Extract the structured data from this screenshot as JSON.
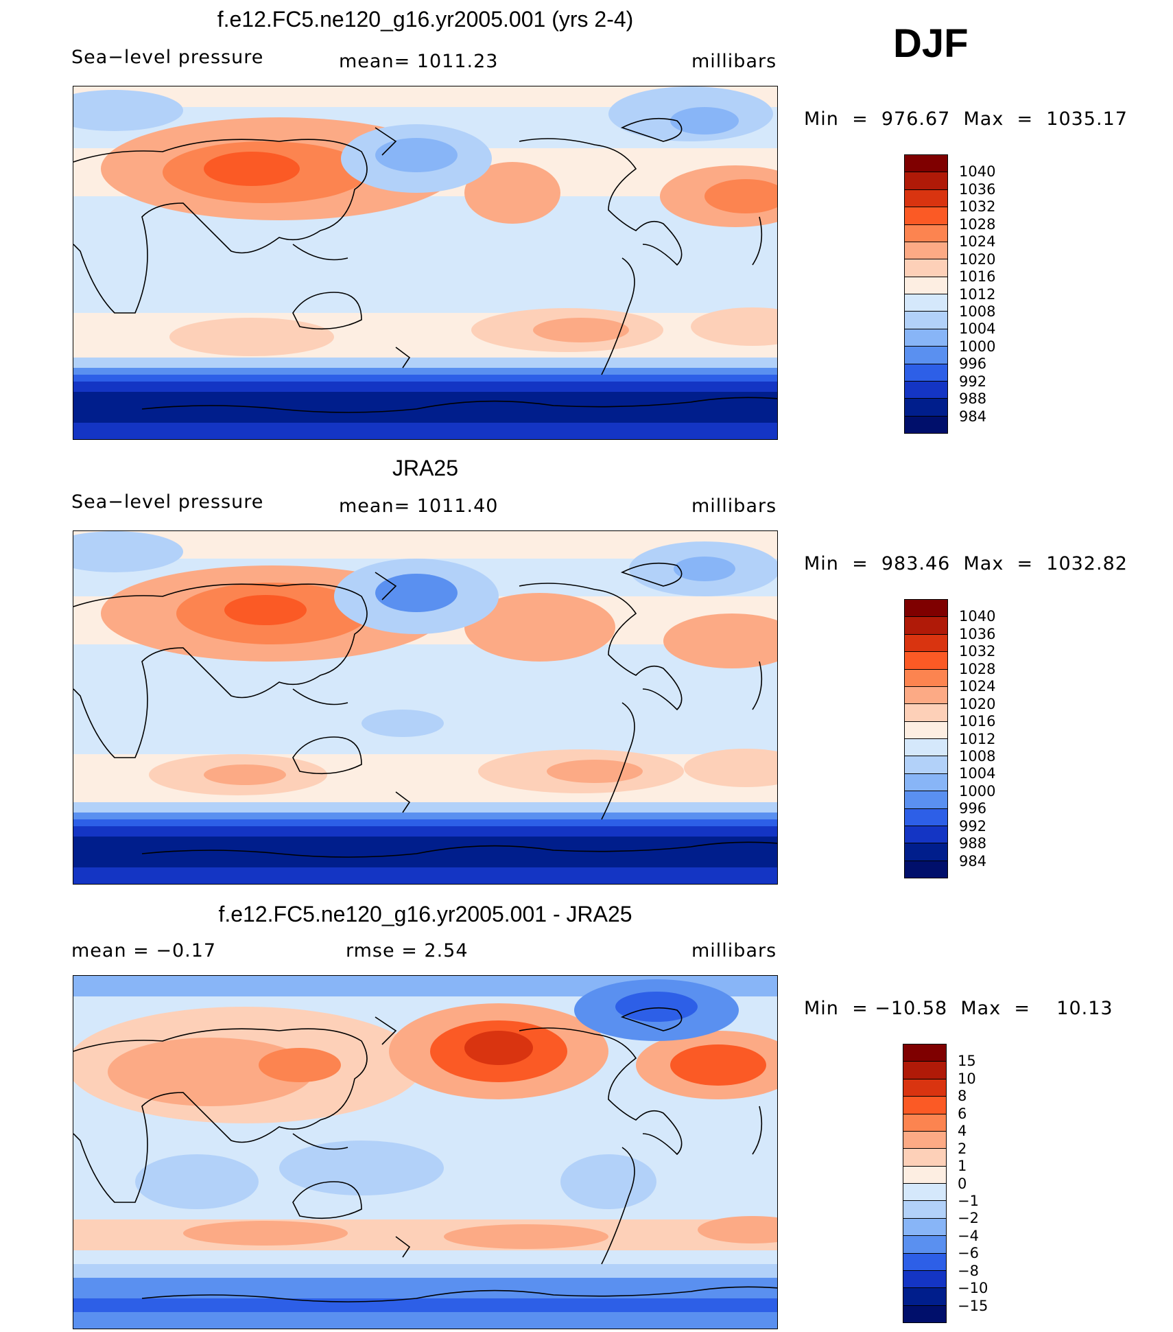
{
  "season": "DJF",
  "panels": [
    {
      "title": "f.e12.FC5.ne120_g16.yr2005.001 (yrs 2-4)",
      "left_label": "Sea−level pressure",
      "center_label": "mean=  1011.23",
      "right_label": "millibars",
      "minmax": "Min  =  976.67  Max  =  1035.17",
      "colorbar_labels": [
        "1040",
        "1036",
        "1032",
        "1028",
        "1024",
        "1020",
        "1016",
        "1012",
        "1008",
        "1004",
        "1000",
        "996",
        "992",
        "988",
        "984"
      ],
      "colorbar_colors": [
        "#7f0000",
        "#b01a08",
        "#d93410",
        "#fb5a25",
        "#fc8450",
        "#fcaa85",
        "#fdd0b8",
        "#fdeee2",
        "#d5e8fb",
        "#b2d1f9",
        "#88b5f7",
        "#5a90f0",
        "#2d5fe7",
        "#1435c4",
        "#001e8c",
        "#000f6b"
      ]
    },
    {
      "title": "JRA25",
      "left_label": "Sea−level pressure",
      "center_label": "mean=  1011.40",
      "right_label": "millibars",
      "minmax": "Min  =  983.46  Max  =  1032.82",
      "colorbar_labels": [
        "1040",
        "1036",
        "1032",
        "1028",
        "1024",
        "1020",
        "1016",
        "1012",
        "1008",
        "1004",
        "1000",
        "996",
        "992",
        "988",
        "984"
      ],
      "colorbar_colors": [
        "#7f0000",
        "#b01a08",
        "#d93410",
        "#fb5a25",
        "#fc8450",
        "#fcaa85",
        "#fdd0b8",
        "#fdeee2",
        "#d5e8fb",
        "#b2d1f9",
        "#88b5f7",
        "#5a90f0",
        "#2d5fe7",
        "#1435c4",
        "#001e8c",
        "#000f6b"
      ]
    },
    {
      "title": "f.e12.FC5.ne120_g16.yr2005.001 - JRA25",
      "left_label": "mean  =    −0.17",
      "center_label": "rmse  =     2.54",
      "right_label": "millibars",
      "minmax": "Min  = −10.58  Max  =    10.13",
      "colorbar_labels": [
        "15",
        "10",
        "8",
        "6",
        "4",
        "2",
        "1",
        "0",
        "−1",
        "−2",
        "−4",
        "−6",
        "−8",
        "−10",
        "−15"
      ],
      "colorbar_colors": [
        "#7f0000",
        "#b01a08",
        "#d93410",
        "#fb5a25",
        "#fc8450",
        "#fcaa85",
        "#fdd0b8",
        "#fdeee2",
        "#d5e8fb",
        "#b2d1f9",
        "#88b5f7",
        "#5a90f0",
        "#2d5fe7",
        "#1435c4",
        "#001e8c",
        "#000f6b"
      ]
    }
  ]
}
